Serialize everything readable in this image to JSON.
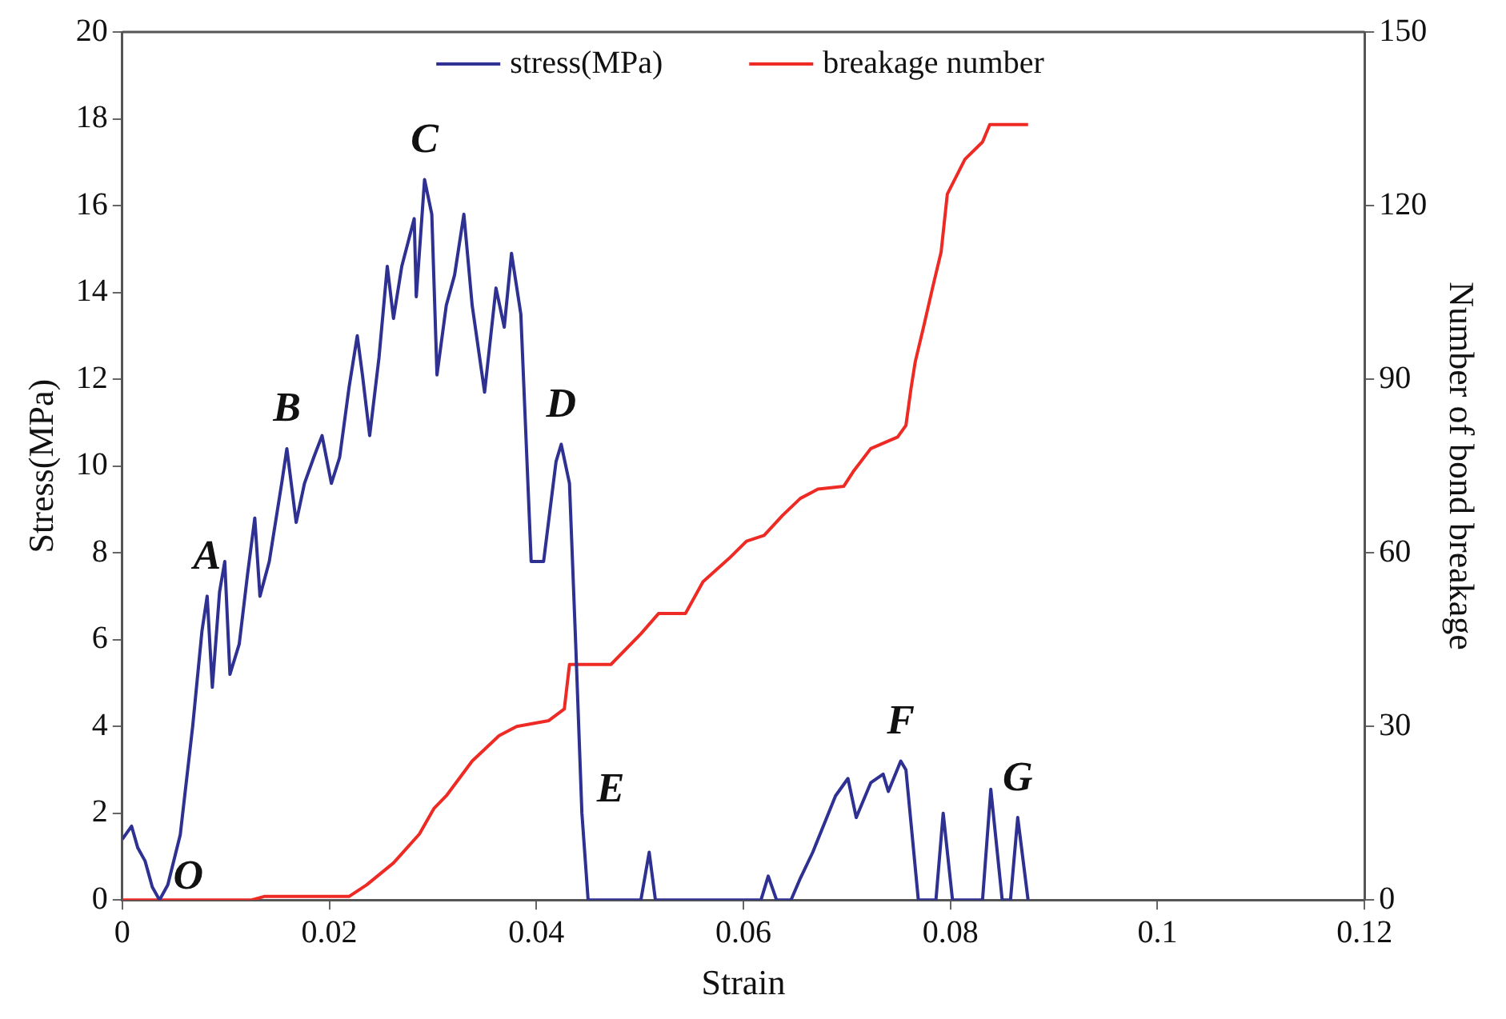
{
  "chart_data": {
    "type": "line",
    "xlabel": "Strain",
    "ylabel": "Stress(MPa)",
    "y2label": "Number of bond breakage",
    "xlim": [
      0,
      0.12
    ],
    "xticks": [
      0,
      0.02,
      0.04,
      0.06,
      0.08,
      0.1,
      0.12
    ],
    "ylim": [
      0,
      20
    ],
    "yticks": [
      0,
      2,
      4,
      6,
      8,
      10,
      12,
      14,
      16,
      18,
      20
    ],
    "y2lim": [
      0,
      150
    ],
    "y2ticks": [
      0,
      30,
      60,
      90,
      120,
      150
    ],
    "grid": false,
    "legend": "top",
    "marker": "none",
    "line_style": "solid",
    "series": [
      {
        "name": "stress(MPa)",
        "color": "#2e3192",
        "x": [
          0,
          0.0009,
          0.0015,
          0.0022,
          0.0029,
          0.0036,
          0.0044,
          0.0056,
          0.0068,
          0.0077,
          0.0082,
          0.0087,
          0.0094,
          0.0099,
          0.0104,
          0.0113,
          0.0121,
          0.0128,
          0.0133,
          0.0142,
          0.0154,
          0.0159,
          0.0168,
          0.0176,
          0.0185,
          0.0193,
          0.0202,
          0.021,
          0.0219,
          0.0227,
          0.0232,
          0.0239,
          0.0248,
          0.0256,
          0.0262,
          0.027,
          0.0282,
          0.0284,
          0.0292,
          0.0299,
          0.0304,
          0.0313,
          0.0321,
          0.033,
          0.0338,
          0.035,
          0.0361,
          0.0369,
          0.0376,
          0.0385,
          0.0395,
          0.0407,
          0.0419,
          0.0424,
          0.0432,
          0.0438,
          0.0444,
          0.045,
          0.0501,
          0.0509,
          0.0515,
          0.0617,
          0.0624,
          0.0632,
          0.0646,
          0.0655,
          0.0667,
          0.0689,
          0.0701,
          0.0709,
          0.0723,
          0.0735,
          0.074,
          0.0752,
          0.0757,
          0.0769,
          0.0786,
          0.0793,
          0.0802,
          0.0831,
          0.0839,
          0.085,
          0.0858,
          0.0865,
          0.0875
        ],
        "values": [
          1.4,
          1.7,
          1.2,
          0.9,
          0.3,
          0,
          0.35,
          1.5,
          4.0,
          6.2,
          7.0,
          4.9,
          7.1,
          7.8,
          5.2,
          5.9,
          7.5,
          8.8,
          7.0,
          7.8,
          9.6,
          10.4,
          8.7,
          9.6,
          10.2,
          10.7,
          9.6,
          10.2,
          11.8,
          13.0,
          12.1,
          10.7,
          12.5,
          14.6,
          13.4,
          14.6,
          15.7,
          13.9,
          16.6,
          15.8,
          12.1,
          13.7,
          14.4,
          15.8,
          13.7,
          11.7,
          14.1,
          13.2,
          14.9,
          13.5,
          7.8,
          7.8,
          10.1,
          10.5,
          9.6,
          5.9,
          2.0,
          0,
          0,
          1.1,
          0,
          0,
          0.55,
          0,
          0,
          0.5,
          1.1,
          2.4,
          2.8,
          1.9,
          2.7,
          2.9,
          2.5,
          3.2,
          3.0,
          0,
          0,
          2.0,
          0,
          0,
          2.55,
          0,
          0,
          1.9,
          0
        ]
      },
      {
        "name": "breakage number",
        "color": "#ee2a24",
        "axis": "y2",
        "x": [
          0,
          0.0125,
          0.0137,
          0.0219,
          0.0236,
          0.0262,
          0.0287,
          0.0301,
          0.0313,
          0.0338,
          0.0364,
          0.0381,
          0.0412,
          0.0427,
          0.0432,
          0.0472,
          0.0501,
          0.0518,
          0.0544,
          0.0561,
          0.0586,
          0.0603,
          0.062,
          0.0638,
          0.0655,
          0.0672,
          0.0697,
          0.0706,
          0.0723,
          0.0749,
          0.0757,
          0.0762,
          0.0766,
          0.0774,
          0.0783,
          0.0791,
          0.0797,
          0.0814,
          0.0831,
          0.0838,
          0.0875
        ],
        "values": [
          0,
          0,
          0.6,
          0.6,
          2.6,
          6.4,
          11.4,
          15.8,
          18,
          24,
          28.4,
          30,
          31,
          33,
          40.7,
          40.7,
          46,
          49.5,
          49.5,
          55,
          59,
          62,
          63,
          66.5,
          69.4,
          71,
          71.5,
          74,
          78,
          80,
          82,
          88.5,
          93,
          99,
          106,
          112,
          122,
          128,
          131,
          134,
          134
        ]
      }
    ],
    "annotations": [
      {
        "text": "O",
        "x": 0.0036,
        "y": 0
      },
      {
        "text": "A",
        "x": 0.0082,
        "y": 7.0
      },
      {
        "text": "B",
        "x": 0.0159,
        "y": 10.4
      },
      {
        "text": "C",
        "x": 0.0292,
        "y": 16.6
      },
      {
        "text": "D",
        "x": 0.0424,
        "y": 10.5
      },
      {
        "text": "E",
        "x": 0.0444,
        "y": 2.0
      },
      {
        "text": "F",
        "x": 0.0752,
        "y": 3.2
      },
      {
        "text": "G",
        "x": 0.0865,
        "y": 1.9
      }
    ]
  }
}
